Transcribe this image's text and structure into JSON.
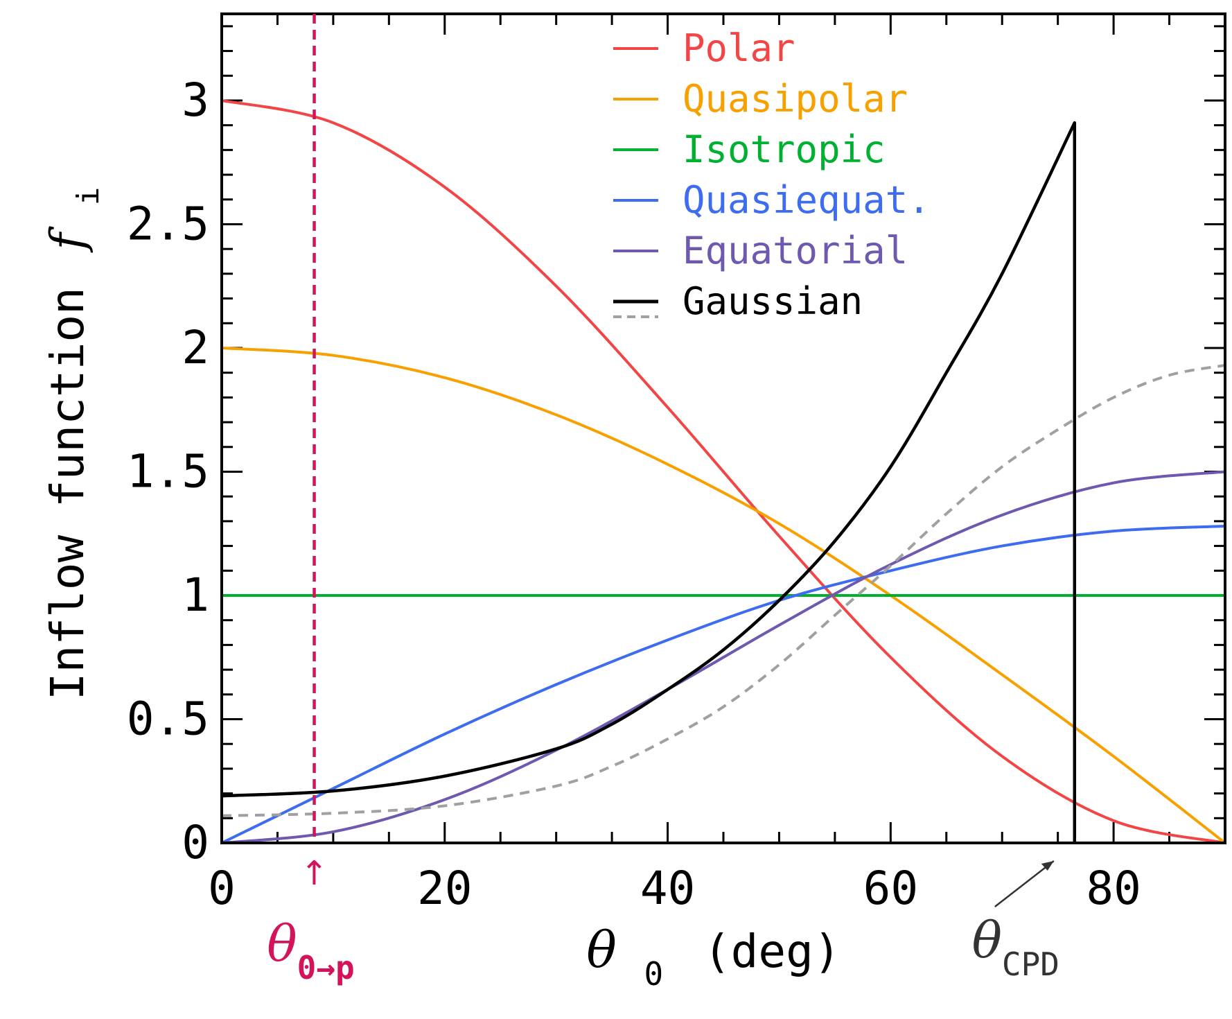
{
  "chart_data": {
    "type": "line",
    "title": "",
    "xlabel": {
      "symbol": "θ",
      "subscript": "0",
      "unit": "(deg)"
    },
    "ylabel": {
      "text": "Inflow function",
      "symbol": "f",
      "subscript": "i"
    },
    "xlim": [
      0,
      90
    ],
    "ylim": [
      0,
      3.35
    ],
    "xticks": [
      0,
      20,
      40,
      60,
      80
    ],
    "xtick_labels": [
      "0",
      "20",
      "40",
      "60",
      "80"
    ],
    "yticks": [
      0,
      0.5,
      1,
      1.5,
      2,
      2.5,
      3
    ],
    "ytick_labels": [
      "0",
      "0.5",
      "1",
      "1.5",
      "2",
      "2.5",
      "3"
    ],
    "x_minor_step": 5,
    "y_minor_step": 0.1,
    "legend_position": "top-center",
    "legend": [
      {
        "name": "Polar",
        "color": "#f24646",
        "style": "solid"
      },
      {
        "name": "Quasipolar",
        "color": "#f7a000",
        "style": "solid"
      },
      {
        "name": "Isotropic",
        "color": "#00b030",
        "style": "solid"
      },
      {
        "name": "Quasiequat.",
        "color": "#3d6cf0",
        "style": "solid"
      },
      {
        "name": "Equatorial",
        "color": "#6e58b0",
        "style": "solid"
      },
      {
        "name": "Gaussian",
        "color": "#000000",
        "style": "solid",
        "second_color": "#a0a0a0",
        "second_style": "dashed"
      }
    ],
    "series": [
      {
        "name": "Polar",
        "color": "#f24646",
        "dash": false,
        "x": [
          0,
          10,
          20,
          30,
          40,
          50,
          60,
          70,
          80,
          90
        ],
        "y": [
          3.0,
          2.91,
          2.65,
          2.25,
          1.76,
          1.24,
          0.75,
          0.35,
          0.09,
          0.0
        ]
      },
      {
        "name": "Quasipolar",
        "color": "#f7a000",
        "dash": false,
        "x": [
          0,
          10,
          20,
          30,
          40,
          50,
          60,
          70,
          80,
          90
        ],
        "y": [
          2.0,
          1.97,
          1.88,
          1.73,
          1.53,
          1.29,
          1.0,
          0.68,
          0.35,
          0.0
        ]
      },
      {
        "name": "Isotropic",
        "color": "#00b030",
        "dash": false,
        "x": [
          0,
          90
        ],
        "y": [
          1.0,
          1.0
        ]
      },
      {
        "name": "Quasiequat.",
        "color": "#3d6cf0",
        "dash": false,
        "x": [
          0,
          10,
          20,
          30,
          40,
          50,
          60,
          70,
          80,
          90
        ],
        "y": [
          0.0,
          0.22,
          0.44,
          0.64,
          0.82,
          0.98,
          1.1,
          1.2,
          1.26,
          1.28
        ]
      },
      {
        "name": "Equatorial",
        "color": "#6e58b0",
        "dash": false,
        "x": [
          0,
          10,
          20,
          30,
          40,
          50,
          60,
          70,
          80,
          90
        ],
        "y": [
          0.0,
          0.045,
          0.175,
          0.375,
          0.62,
          0.88,
          1.125,
          1.325,
          1.455,
          1.5
        ]
      },
      {
        "name": "Gaussian",
        "color": "#000000",
        "dash": false,
        "x": [
          0,
          10,
          20,
          30,
          35,
          40,
          45,
          50,
          55,
          60,
          65,
          70,
          76.5,
          76.5
        ],
        "y": [
          0.19,
          0.21,
          0.27,
          0.38,
          0.48,
          0.62,
          0.78,
          0.98,
          1.22,
          1.52,
          1.9,
          2.3,
          2.91,
          0.0
        ]
      },
      {
        "name": "Gaussian (dashed)",
        "color": "#a0a0a0",
        "dash": true,
        "x": [
          0,
          10,
          20,
          30,
          35,
          40,
          45,
          50,
          55,
          60,
          65,
          70,
          75,
          80,
          85,
          90
        ],
        "y": [
          0.11,
          0.12,
          0.15,
          0.23,
          0.31,
          0.42,
          0.55,
          0.72,
          0.92,
          1.12,
          1.33,
          1.52,
          1.67,
          1.8,
          1.89,
          1.93
        ]
      }
    ],
    "annotations": [
      {
        "name": "theta-0-p",
        "x": 8.3,
        "color": "#d4145a",
        "symbol": "θ",
        "subscript": "0→p",
        "style": "dashed-vline",
        "arrow": "↑"
      },
      {
        "name": "theta-cpd",
        "x": 76.5,
        "color": "#333333",
        "symbol": "θ",
        "subscript": "CPD",
        "style": "diagonal-arrow"
      }
    ]
  }
}
